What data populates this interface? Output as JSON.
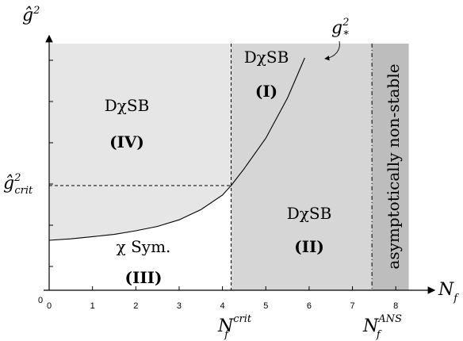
{
  "chart_data": {
    "type": "phase-diagram",
    "x_ticks": [
      "0",
      "1",
      "2",
      "3",
      "4",
      "5",
      "6",
      "7",
      "8"
    ],
    "y_origin": "0",
    "xlabel": {
      "base": "N",
      "sub": "f"
    },
    "ylabel": {
      "hat": "ĝ",
      "sup": "2"
    },
    "x_range": [
      0,
      8.3
    ],
    "critical_line_x": 4.2,
    "ans_line_x": 7.45,
    "critical_coupling_label": {
      "hat": "ĝ",
      "sup": "2",
      "sub": "crit"
    },
    "nf_crit_label": {
      "base": "N",
      "sub": "f",
      "sup": "crit"
    },
    "nf_ans_label": {
      "base": "N",
      "sub": "f",
      "sup": "ANS"
    },
    "curve_label": {
      "base": "g",
      "sub": "*",
      "sup": "2"
    },
    "curve": [
      [
        0,
        0.0
      ],
      [
        0.5,
        0.02
      ],
      [
        1,
        0.05
      ],
      [
        1.5,
        0.08
      ],
      [
        2,
        0.13
      ],
      [
        2.5,
        0.19
      ],
      [
        3,
        0.28
      ],
      [
        3.5,
        0.42
      ],
      [
        4,
        0.62
      ],
      [
        4.2,
        0.75
      ],
      [
        4.5,
        0.98
      ],
      [
        5,
        1.4
      ],
      [
        5.5,
        1.95
      ],
      [
        5.9,
        2.5
      ]
    ],
    "regions": [
      {
        "line1": "DχSB",
        "line2": "(IV)"
      },
      {
        "line1": "DχSB",
        "line2": "(I)"
      },
      {
        "line1": "DχSB",
        "line2": "(II)"
      },
      {
        "line1": "χ Sym.",
        "line2": "(III)"
      }
    ],
    "ans_region": "asymptotically non-stable"
  }
}
